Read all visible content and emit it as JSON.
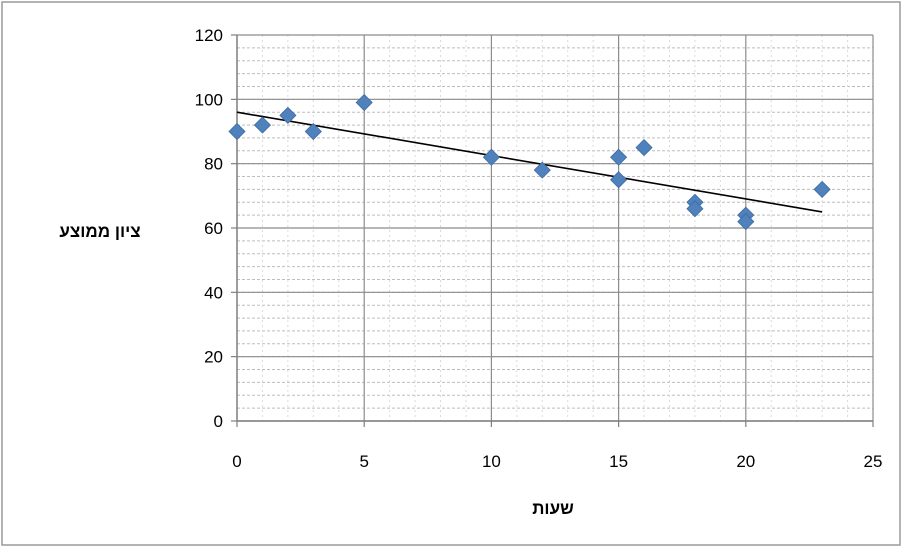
{
  "chart_data": {
    "type": "scatter",
    "title": "",
    "xlabel": "שעות",
    "ylabel": "ציון ממוצע",
    "xlim": [
      0,
      25
    ],
    "ylim": [
      0,
      120
    ],
    "x_ticks": [
      0,
      5,
      10,
      15,
      20,
      25
    ],
    "y_ticks": [
      0,
      20,
      40,
      60,
      80,
      100,
      120
    ],
    "grid": "on",
    "legend": "none",
    "series": [
      {
        "marker": "diamond",
        "color": "#4f81bd",
        "points": [
          {
            "x": 0,
            "y": 90
          },
          {
            "x": 1,
            "y": 92
          },
          {
            "x": 2,
            "y": 95
          },
          {
            "x": 3,
            "y": 90
          },
          {
            "x": 5,
            "y": 99
          },
          {
            "x": 10,
            "y": 82
          },
          {
            "x": 12,
            "y": 78
          },
          {
            "x": 15,
            "y": 82
          },
          {
            "x": 15,
            "y": 75
          },
          {
            "x": 16,
            "y": 85
          },
          {
            "x": 18,
            "y": 68
          },
          {
            "x": 18,
            "y": 66
          },
          {
            "x": 20,
            "y": 64
          },
          {
            "x": 20,
            "y": 62
          },
          {
            "x": 23,
            "y": 72
          }
        ]
      }
    ],
    "trendline": {
      "type": "linear",
      "color": "#000000",
      "start": {
        "x": 0,
        "y": 96
      },
      "end": {
        "x": 23,
        "y": 65
      }
    }
  }
}
